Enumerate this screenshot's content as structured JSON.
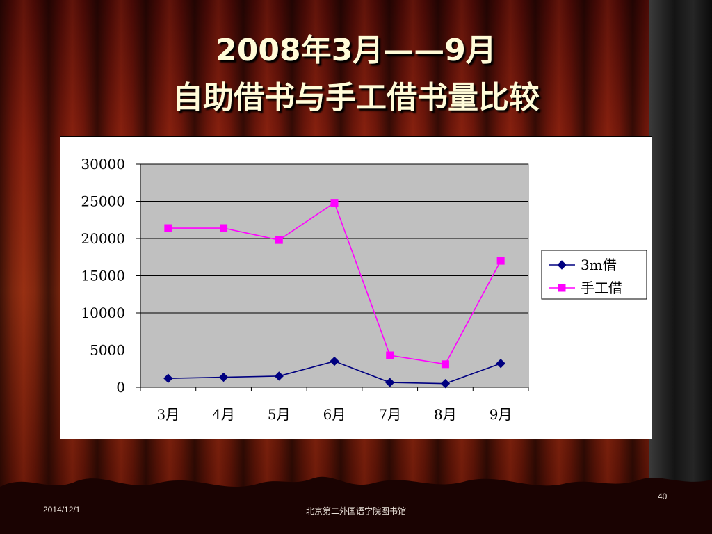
{
  "slide": {
    "title_line1": "2008年3月——9月",
    "title_line2": "自助借书与手工借书量比较",
    "footer_date": "2014/12/1",
    "footer_org": "北京第二外国语学院图书馆",
    "page_number": "40"
  },
  "chart_data": {
    "type": "line",
    "categories": [
      "3月",
      "4月",
      "5月",
      "6月",
      "7月",
      "8月",
      "9月"
    ],
    "ylim": [
      0,
      30000
    ],
    "yticks": [
      0,
      5000,
      10000,
      15000,
      20000,
      25000,
      30000
    ],
    "grid": true,
    "legend_position": "right",
    "series": [
      {
        "name": "3m借",
        "color": "#000080",
        "marker": "diamond",
        "values": [
          1200,
          1350,
          1500,
          3500,
          650,
          500,
          3200
        ]
      },
      {
        "name": "手工借",
        "color": "#ff00ff",
        "marker": "square",
        "values": [
          21400,
          21400,
          19800,
          24800,
          4300,
          3100,
          17000
        ]
      }
    ]
  },
  "colors": {
    "plot_background": "#c0c0c0",
    "gridline": "#000000",
    "title_text": "#fffbd8"
  }
}
